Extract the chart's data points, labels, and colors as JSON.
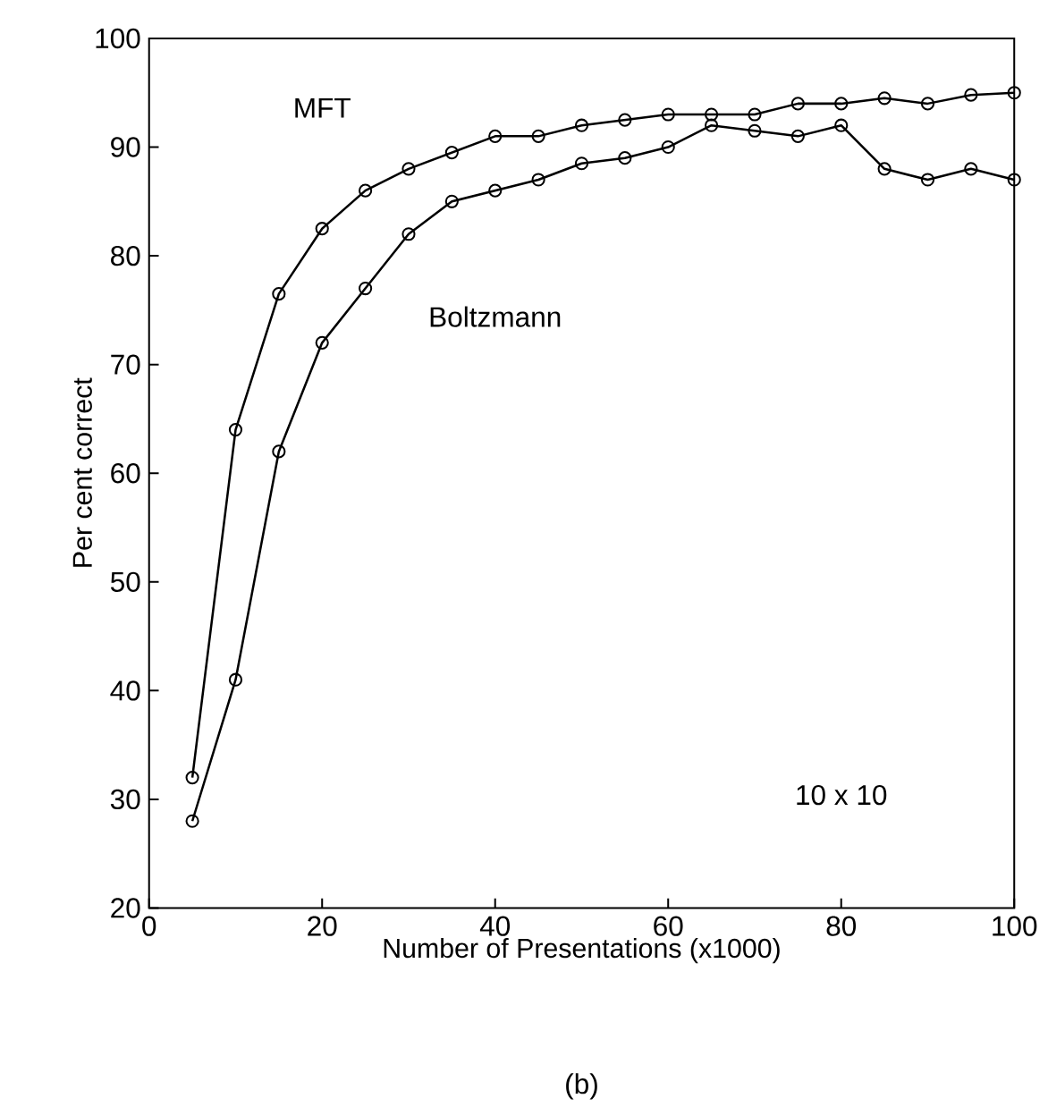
{
  "chart_data": {
    "type": "line",
    "xlabel": "Number of Presentations (x1000)",
    "ylabel": "Per cent correct",
    "x": [
      5,
      10,
      15,
      20,
      25,
      30,
      35,
      40,
      45,
      50,
      55,
      60,
      65,
      70,
      75,
      80,
      85,
      90,
      95,
      100
    ],
    "series": [
      {
        "name": "MFT",
        "color": "#000000",
        "values": [
          32,
          64,
          76.5,
          82.5,
          86,
          88,
          89.5,
          91,
          91,
          92,
          92.5,
          93,
          93,
          93,
          94,
          94,
          94.5,
          94,
          94.8,
          95
        ]
      },
      {
        "name": "Boltzmann",
        "color": "#000000",
        "values": [
          28,
          41,
          62,
          72,
          77,
          82,
          85,
          86,
          87,
          88.5,
          89,
          90,
          92,
          91.5,
          91,
          92,
          88,
          87,
          88,
          87
        ]
      }
    ],
    "xlim": [
      0,
      100
    ],
    "ylim": [
      20,
      100
    ],
    "xticks": [
      0,
      20,
      40,
      60,
      80,
      100
    ],
    "yticks": [
      20,
      30,
      40,
      50,
      60,
      70,
      80,
      90,
      100
    ],
    "marker": "circle",
    "line_style": "solid",
    "annotations": [
      "10 x 10",
      "(b)"
    ]
  }
}
